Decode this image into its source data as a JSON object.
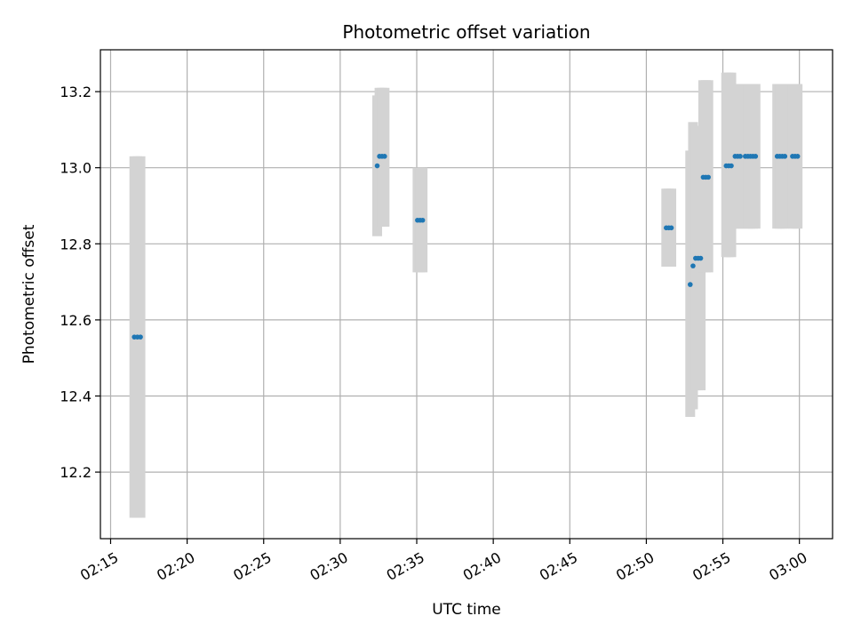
{
  "chart_data": {
    "type": "scatter",
    "title": "Photometric offset variation",
    "xlabel": "UTC time",
    "ylabel": "Photometric offset",
    "x_unit": "UTC time (HH:MM)",
    "xlim": [
      "02:14:20",
      "03:02:10"
    ],
    "ylim": [
      12.025,
      13.31
    ],
    "grid": true,
    "x_ticks": [
      "02:15",
      "02:20",
      "02:25",
      "02:30",
      "02:35",
      "02:40",
      "02:45",
      "02:50",
      "02:55",
      "03:00"
    ],
    "y_ticks": [
      12.2,
      12.4,
      12.6,
      12.8,
      13.0,
      13.2
    ],
    "series": [
      {
        "marker_color": "#1f77b4",
        "error_color": "#d3d3d3",
        "points": [
          {
            "x": "02:16:33",
            "y": 12.555,
            "low": 12.08,
            "high": 13.03
          },
          {
            "x": "02:16:45",
            "y": 12.555,
            "low": 12.08,
            "high": 13.03
          },
          {
            "x": "02:16:57",
            "y": 12.555,
            "low": 12.08,
            "high": 13.03
          },
          {
            "x": "02:32:25",
            "y": 13.005,
            "low": 12.82,
            "high": 13.19
          },
          {
            "x": "02:32:34",
            "y": 13.03,
            "low": 12.845,
            "high": 13.21
          },
          {
            "x": "02:32:44",
            "y": 13.03,
            "low": 12.845,
            "high": 13.21
          },
          {
            "x": "02:32:54",
            "y": 13.03,
            "low": 12.845,
            "high": 13.21
          },
          {
            "x": "02:35:03",
            "y": 12.862,
            "low": 12.725,
            "high": 13.0
          },
          {
            "x": "02:35:13",
            "y": 12.862,
            "low": 12.725,
            "high": 13.0
          },
          {
            "x": "02:35:23",
            "y": 12.862,
            "low": 12.725,
            "high": 13.0
          },
          {
            "x": "02:51:18",
            "y": 12.842,
            "low": 12.74,
            "high": 12.945
          },
          {
            "x": "02:51:28",
            "y": 12.842,
            "low": 12.74,
            "high": 12.945
          },
          {
            "x": "02:51:38",
            "y": 12.842,
            "low": 12.74,
            "high": 12.945
          },
          {
            "x": "02:52:52",
            "y": 12.693,
            "low": 12.345,
            "high": 13.045
          },
          {
            "x": "02:53:03",
            "y": 12.742,
            "low": 12.365,
            "high": 13.12
          },
          {
            "x": "02:53:13",
            "y": 12.762,
            "low": 12.415,
            "high": 13.11
          },
          {
            "x": "02:53:23",
            "y": 12.762,
            "low": 12.415,
            "high": 13.11
          },
          {
            "x": "02:53:33",
            "y": 12.762,
            "low": 12.415,
            "high": 13.11
          },
          {
            "x": "02:53:43",
            "y": 12.975,
            "low": 12.725,
            "high": 13.23
          },
          {
            "x": "02:53:53",
            "y": 12.975,
            "low": 12.725,
            "high": 13.23
          },
          {
            "x": "02:54:03",
            "y": 12.975,
            "low": 12.725,
            "high": 13.23
          },
          {
            "x": "02:55:13",
            "y": 13.005,
            "low": 12.765,
            "high": 13.25
          },
          {
            "x": "02:55:23",
            "y": 13.005,
            "low": 12.765,
            "high": 13.25
          },
          {
            "x": "02:55:33",
            "y": 13.005,
            "low": 12.765,
            "high": 13.25
          },
          {
            "x": "02:55:48",
            "y": 13.03,
            "low": 12.84,
            "high": 13.22
          },
          {
            "x": "02:55:58",
            "y": 13.03,
            "low": 12.84,
            "high": 13.22
          },
          {
            "x": "02:56:08",
            "y": 13.03,
            "low": 12.84,
            "high": 13.22
          },
          {
            "x": "02:56:28",
            "y": 13.03,
            "low": 12.84,
            "high": 13.22
          },
          {
            "x": "02:56:38",
            "y": 13.03,
            "low": 12.84,
            "high": 13.22
          },
          {
            "x": "02:56:48",
            "y": 13.03,
            "low": 12.84,
            "high": 13.22
          },
          {
            "x": "02:56:58",
            "y": 13.03,
            "low": 12.84,
            "high": 13.22
          },
          {
            "x": "02:57:08",
            "y": 13.03,
            "low": 12.84,
            "high": 13.22
          },
          {
            "x": "02:58:33",
            "y": 13.03,
            "low": 12.84,
            "high": 13.22
          },
          {
            "x": "02:58:43",
            "y": 13.03,
            "low": 12.84,
            "high": 13.22
          },
          {
            "x": "02:58:53",
            "y": 13.03,
            "low": 12.84,
            "high": 13.22
          },
          {
            "x": "02:59:03",
            "y": 13.03,
            "low": 12.84,
            "high": 13.22
          },
          {
            "x": "02:59:33",
            "y": 13.03,
            "low": 12.84,
            "high": 13.22
          },
          {
            "x": "02:59:43",
            "y": 13.03,
            "low": 12.84,
            "high": 13.22
          },
          {
            "x": "02:59:53",
            "y": 13.03,
            "low": 12.84,
            "high": 13.22
          }
        ]
      }
    ]
  }
}
